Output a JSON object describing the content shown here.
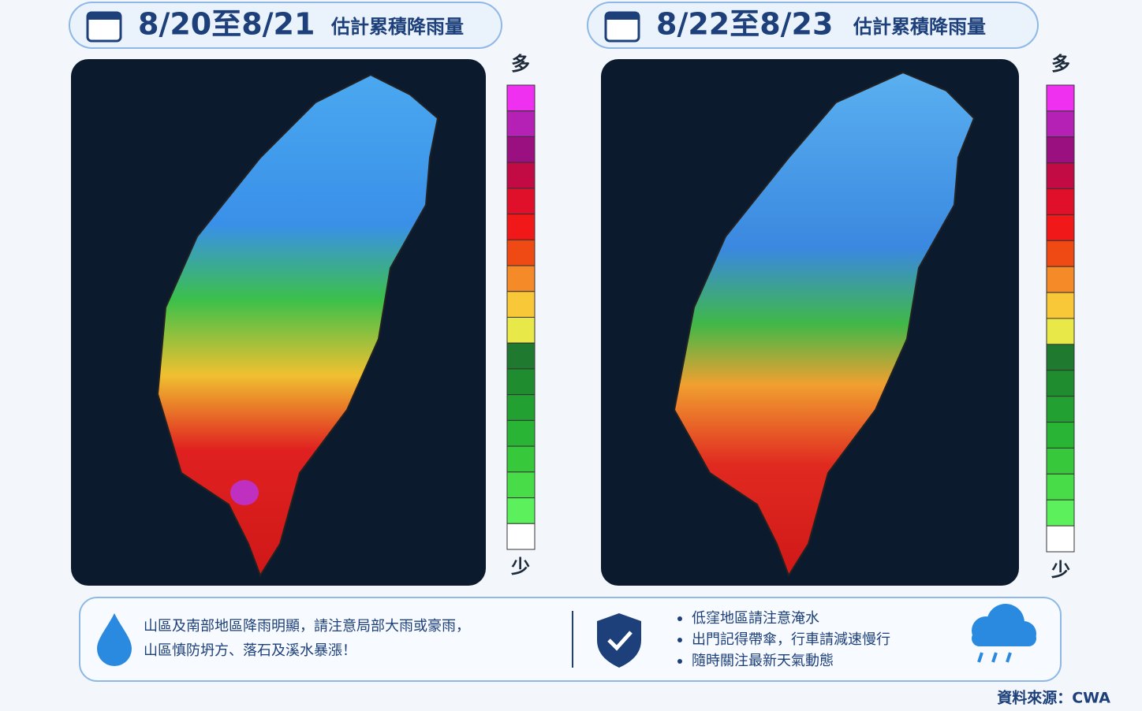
{
  "panels": [
    {
      "date_range": "8/20至8/21",
      "title": "估計累積降雨量",
      "legend_high": "多",
      "legend_low": "少"
    },
    {
      "date_range": "8/22至8/23",
      "title": "估計累積降雨量",
      "legend_high": "多",
      "legend_low": "少"
    }
  ],
  "legend_colors": [
    "#f030f0",
    "#b520b5",
    "#9a1080",
    "#c20a45",
    "#e0102a",
    "#f01818",
    "#f04a14",
    "#f58a28",
    "#f8c838",
    "#e8e848",
    "#1f7a30",
    "#1f8c30",
    "#22a032",
    "#2ab436",
    "#38c83c",
    "#48dc48",
    "#5cf05c",
    "#ffffff"
  ],
  "notice": {
    "lines": [
      "山區及南部地區降雨明顯，請注意局部大雨或豪雨，",
      "山區慎防坍方、落石及溪水暴漲！"
    ],
    "tips": [
      "低窪地區請注意淹水",
      "出門記得帶傘，行車請減速慢行",
      "隨時關注最新天氣動態"
    ]
  },
  "source": "資料來源：CWA"
}
